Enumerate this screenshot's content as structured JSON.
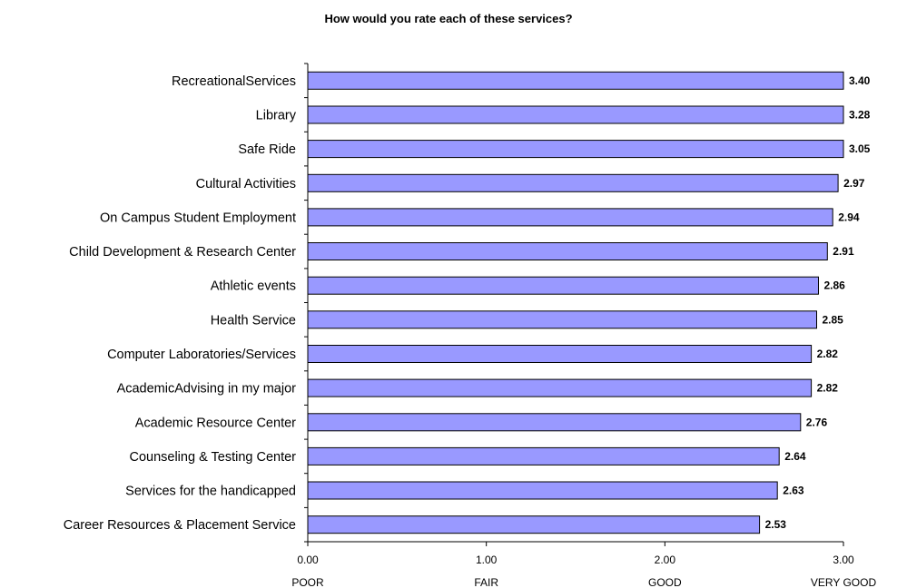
{
  "chart_data": {
    "type": "bar",
    "orientation": "horizontal",
    "title": "How would you rate each of these services?",
    "categories": [
      "RecreationalServices",
      "Library",
      "Safe Ride",
      "Cultural Activities",
      "On Campus Student Employment",
      "Child Development & Research Center",
      "Athletic events",
      "Health Service",
      "Computer Laboratories/Services",
      "AcademicAdvising in my major",
      "Academic Resource Center",
      "Counseling & Testing Center",
      "Services for the handicapped",
      "Career Resources & Placement Service"
    ],
    "values": [
      3.4,
      3.28,
      3.05,
      2.97,
      2.94,
      2.91,
      2.86,
      2.85,
      2.82,
      2.82,
      2.76,
      2.64,
      2.63,
      2.53
    ],
    "value_labels": [
      "3.40",
      "3.28",
      "3.05",
      "2.97",
      "2.94",
      "2.91",
      "2.86",
      "2.85",
      "2.82",
      "2.82",
      "2.76",
      "2.64",
      "2.63",
      "2.53"
    ],
    "xlim": [
      0,
      3
    ],
    "xticks": [
      0,
      1,
      2,
      3
    ],
    "xtick_labels": [
      "0.00",
      "1.00",
      "2.00",
      "3.00"
    ],
    "xtick_sublabels": [
      "POOR",
      "FAIR",
      "GOOD",
      "VERY GOOD"
    ],
    "xlabel": "",
    "ylabel": "",
    "grid": false,
    "legend": "none",
    "bar_color": "#9999ff",
    "bar_edge_color": "#000000"
  }
}
